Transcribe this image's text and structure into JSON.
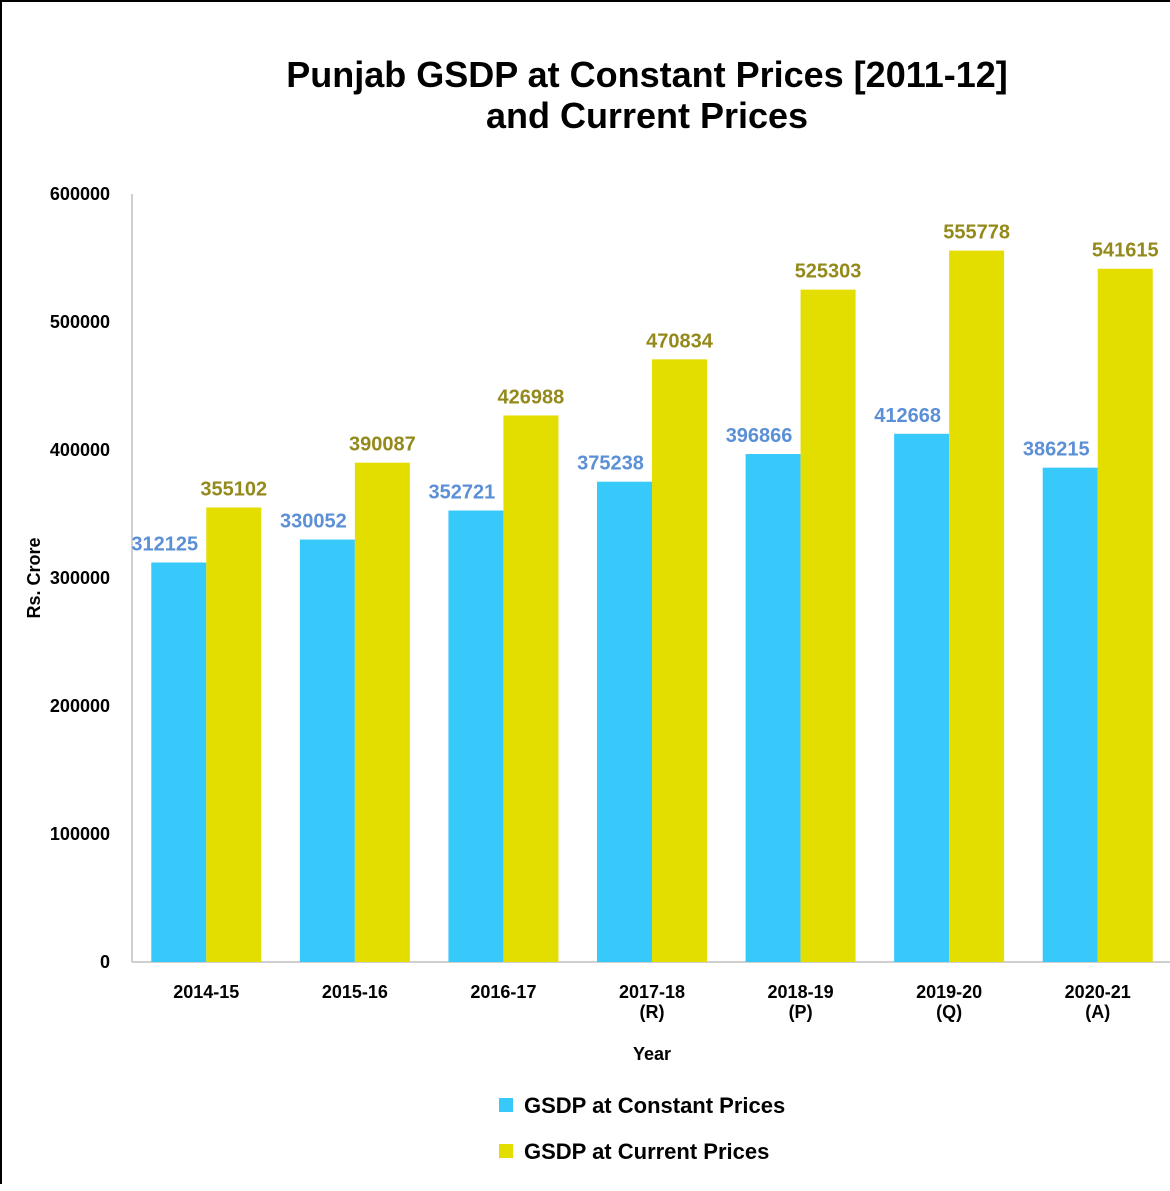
{
  "colors": {
    "constant": "#38c9fb",
    "current": "#e3dd00",
    "constant_label": "#5b8fd6",
    "current_label": "#948a1c"
  },
  "chart_data": {
    "type": "bar",
    "title": [
      "Punjab GSDP at Constant Prices [2011-12]",
      "and Current Prices"
    ],
    "xlabel": "Year",
    "ylabel": "Rs. Crore",
    "ylim": [
      0,
      600000
    ],
    "yticks": [
      "0",
      "100000",
      "200000",
      "300000",
      "400000",
      "500000",
      "600000"
    ],
    "categories": [
      [
        "2014-15"
      ],
      [
        "2015-16"
      ],
      [
        "2016-17"
      ],
      [
        "2017-18",
        "(R)"
      ],
      [
        "2018-19",
        "(P)"
      ],
      [
        "2019-20",
        "(Q)"
      ],
      [
        "2020-21",
        "(A)"
      ]
    ],
    "series": [
      {
        "name": "GSDP at Constant Prices",
        "values": [
          312125,
          330052,
          352721,
          375238,
          396866,
          412668,
          386215
        ]
      },
      {
        "name": "GSDP at Current Prices",
        "values": [
          355102,
          390087,
          426988,
          470834,
          525303,
          555778,
          541615
        ]
      }
    ],
    "grid": false,
    "legend": "bottom"
  }
}
